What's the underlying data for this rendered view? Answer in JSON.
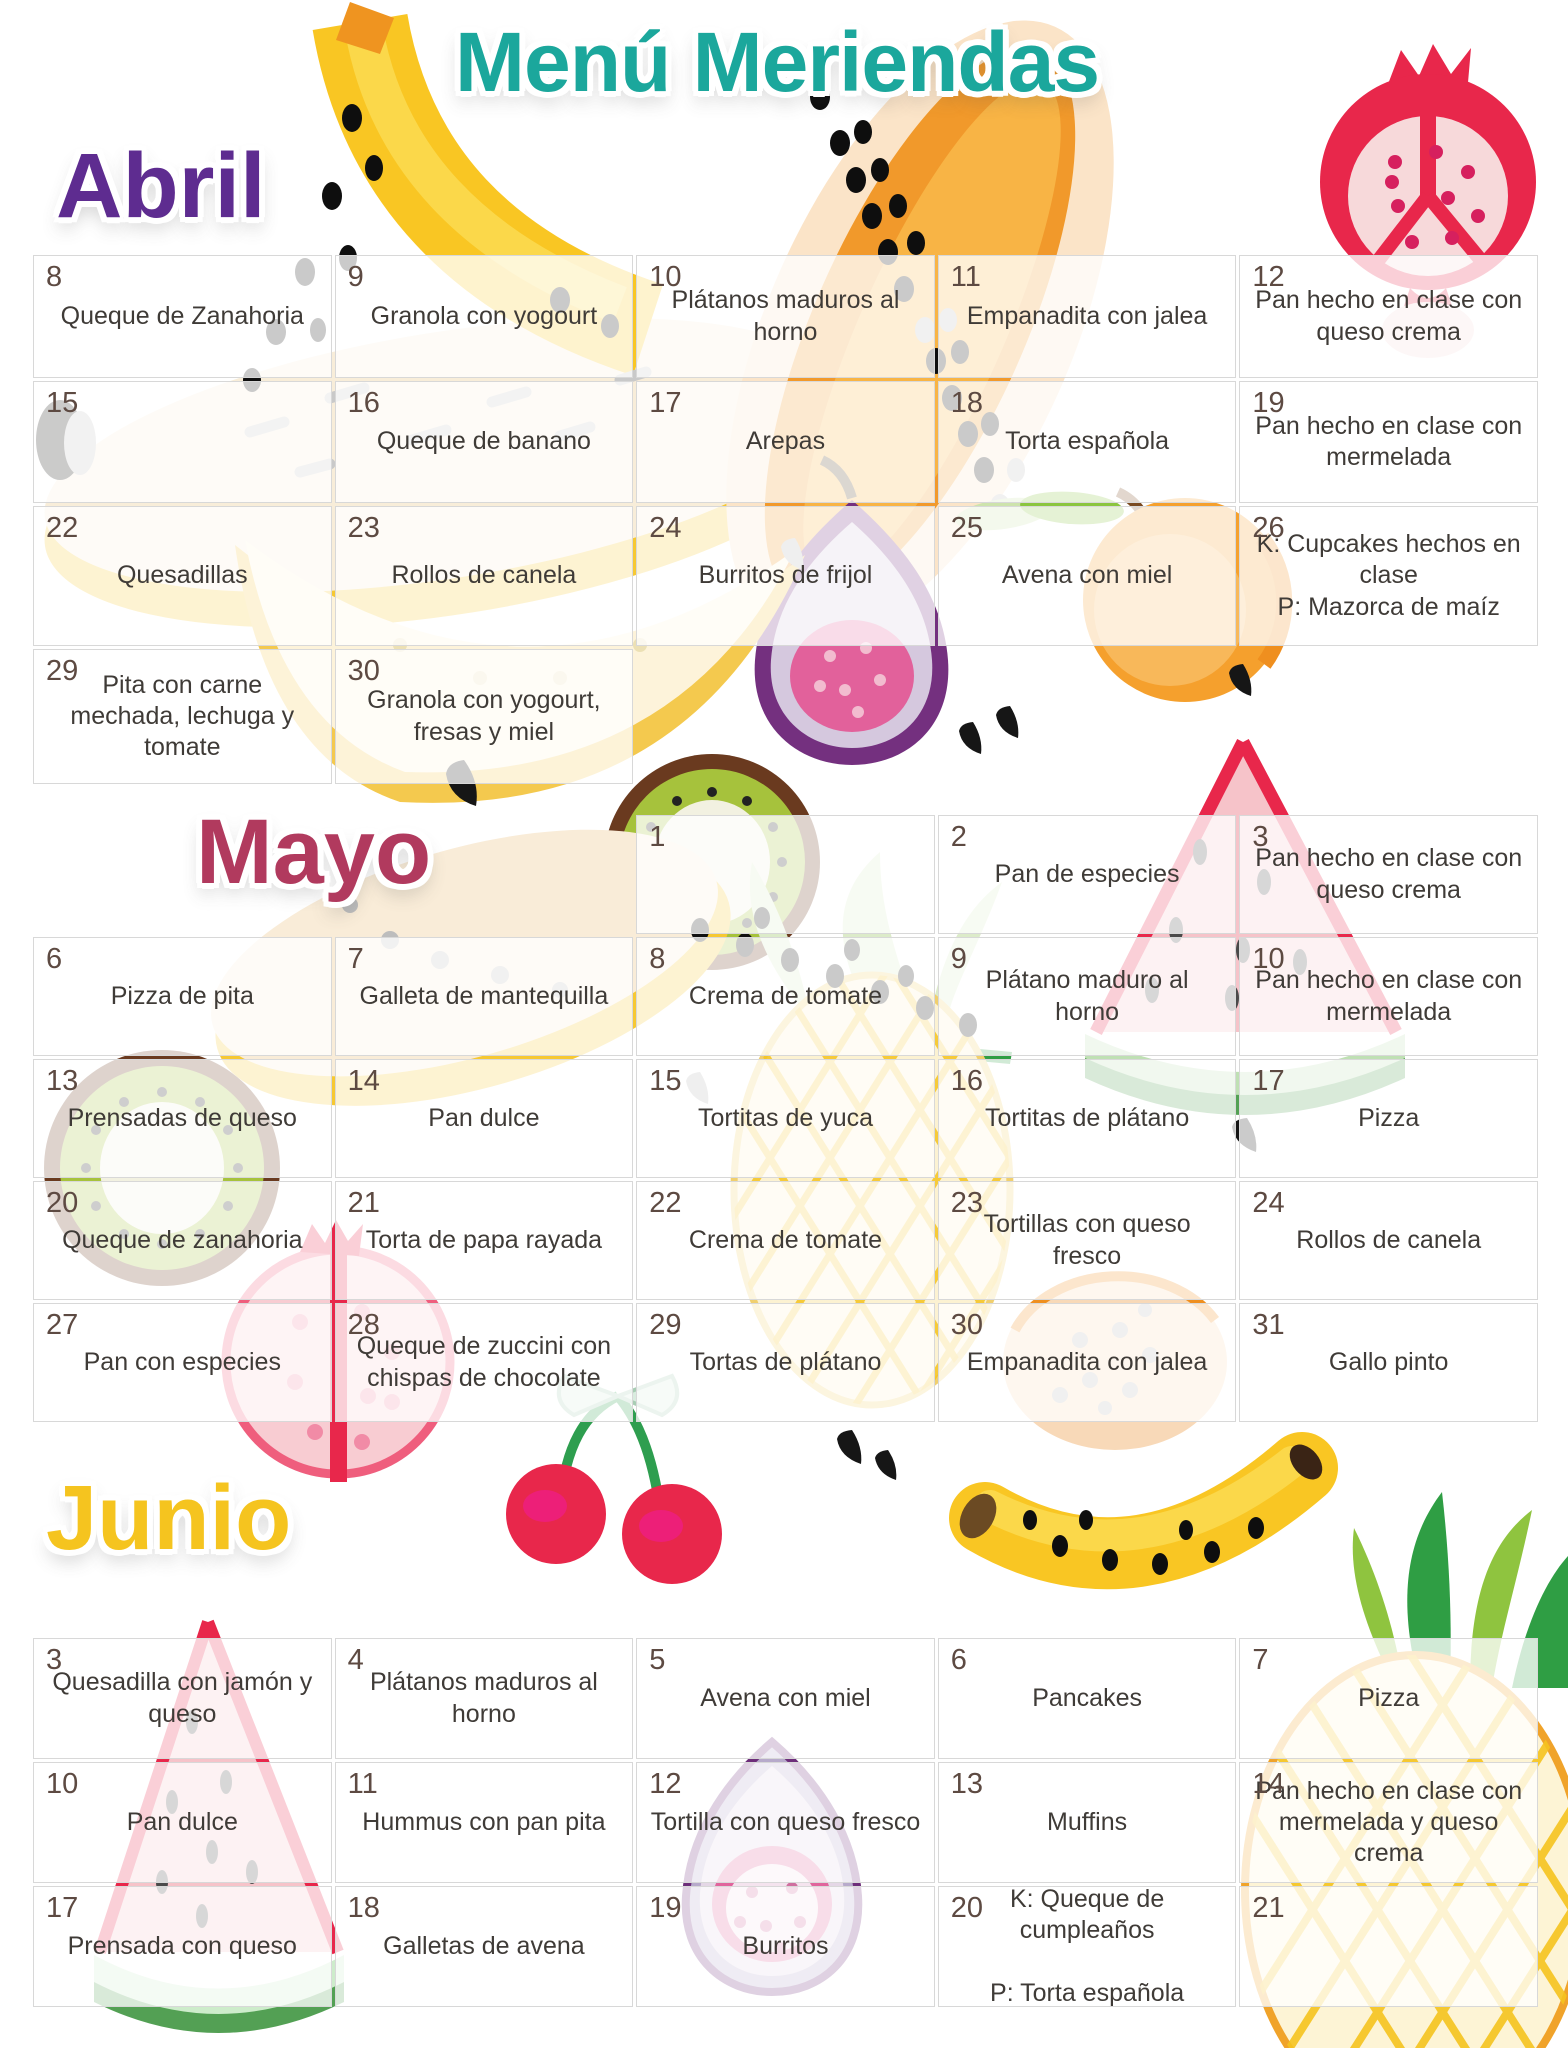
{
  "title": "Menú Meriendas",
  "theme": {
    "title_color": "#1ba79c",
    "day_number_color": "#5d4a42",
    "text_color": "#3f3b37",
    "grid_line_color": "#d8d8d8"
  },
  "decorations": [
    "banana",
    "papaya",
    "pomegranate",
    "orange",
    "fig",
    "melon",
    "kiwi",
    "watermelon",
    "pineapple",
    "cherries"
  ],
  "months": [
    {
      "name": "Abril",
      "color": "#5e2c90",
      "rows": [
        [
          {
            "day": "8",
            "text": "Queque de Zanahoria"
          },
          {
            "day": "9",
            "text": "Granola con yogourt"
          },
          {
            "day": "10",
            "text": "Plátanos maduros al horno"
          },
          {
            "day": "11",
            "text": "Empanadita con jalea"
          },
          {
            "day": "12",
            "text": "Pan hecho en clase con queso crema"
          }
        ],
        [
          {
            "day": "15",
            "text": ""
          },
          {
            "day": "16",
            "text": "Queque de banano"
          },
          {
            "day": "17",
            "text": "Arepas"
          },
          {
            "day": "18",
            "text": "Torta española"
          },
          {
            "day": "19",
            "text": "Pan hecho en clase con mermelada"
          }
        ],
        [
          {
            "day": "22",
            "text": "Quesadillas"
          },
          {
            "day": "23",
            "text": "Rollos de canela"
          },
          {
            "day": "24",
            "text": "Burritos de frijol"
          },
          {
            "day": "25",
            "text": "Avena con miel"
          },
          {
            "day": "26",
            "text": "K: Cupcakes hechos en clase\nP: Mazorca de maíz"
          }
        ],
        [
          {
            "day": "29",
            "text": "Pita con carne mechada, lechuga y tomate"
          },
          {
            "day": "30",
            "text": "Granola con yogourt, fresas y miel"
          },
          null,
          null,
          null
        ]
      ]
    },
    {
      "name": "Mayo",
      "color": "#b13a5e",
      "rows": [
        [
          null,
          null,
          {
            "day": "1",
            "text": ""
          },
          {
            "day": "2",
            "text": "Pan de especies"
          },
          {
            "day": "3",
            "text": "Pan hecho en clase con queso crema"
          }
        ],
        [
          {
            "day": "6",
            "text": "Pizza de pita"
          },
          {
            "day": "7",
            "text": "Galleta de mantequilla"
          },
          {
            "day": "8",
            "text": "Crema de tomate"
          },
          {
            "day": "9",
            "text": "Plátano maduro al horno"
          },
          {
            "day": "10",
            "text": "Pan hecho en clase con mermelada"
          }
        ],
        [
          {
            "day": "13",
            "text": "Prensadas de queso"
          },
          {
            "day": "14",
            "text": "Pan dulce"
          },
          {
            "day": "15",
            "text": "Tortitas de yuca"
          },
          {
            "day": "16",
            "text": "Tortitas de plátano"
          },
          {
            "day": "17",
            "text": "Pizza"
          }
        ],
        [
          {
            "day": "20",
            "text": "Queque de zanahoria"
          },
          {
            "day": "21",
            "text": "Torta de papa rayada"
          },
          {
            "day": "22",
            "text": "Crema de tomate"
          },
          {
            "day": "23",
            "text": "Tortillas con queso fresco"
          },
          {
            "day": "24",
            "text": "Rollos de canela"
          }
        ],
        [
          {
            "day": "27",
            "text": "Pan con especies"
          },
          {
            "day": "28",
            "text": "Queque de zuccini con chispas de chocolate"
          },
          {
            "day": "29",
            "text": "Tortas de plátano"
          },
          {
            "day": "30",
            "text": "Empanadita con jalea"
          },
          {
            "day": "31",
            "text": "Gallo pinto"
          }
        ]
      ]
    },
    {
      "name": "Junio",
      "color": "#f5c41f",
      "rows": [
        [
          {
            "day": "3",
            "text": "Quesadilla con jamón y queso"
          },
          {
            "day": "4",
            "text": "Plátanos maduros al horno"
          },
          {
            "day": "5",
            "text": "Avena con miel"
          },
          {
            "day": "6",
            "text": "Pancakes"
          },
          {
            "day": "7",
            "text": "Pizza"
          }
        ],
        [
          {
            "day": "10",
            "text": "Pan dulce"
          },
          {
            "day": "11",
            "text": "Hummus con pan pita"
          },
          {
            "day": "12",
            "text": "Tortilla con queso fresco"
          },
          {
            "day": "13",
            "text": "Muffins"
          },
          {
            "day": "14",
            "text": "Pan hecho en clase con mermelada y queso crema"
          }
        ],
        [
          {
            "day": "17",
            "text": "Prensada con queso"
          },
          {
            "day": "18",
            "text": "Galletas de avena"
          },
          {
            "day": "19",
            "text": "Burritos"
          },
          {
            "day": "20",
            "text": "K: Queque de cumpleaños\n\nP: Torta española"
          },
          {
            "day": "21",
            "text": ""
          }
        ]
      ]
    }
  ]
}
